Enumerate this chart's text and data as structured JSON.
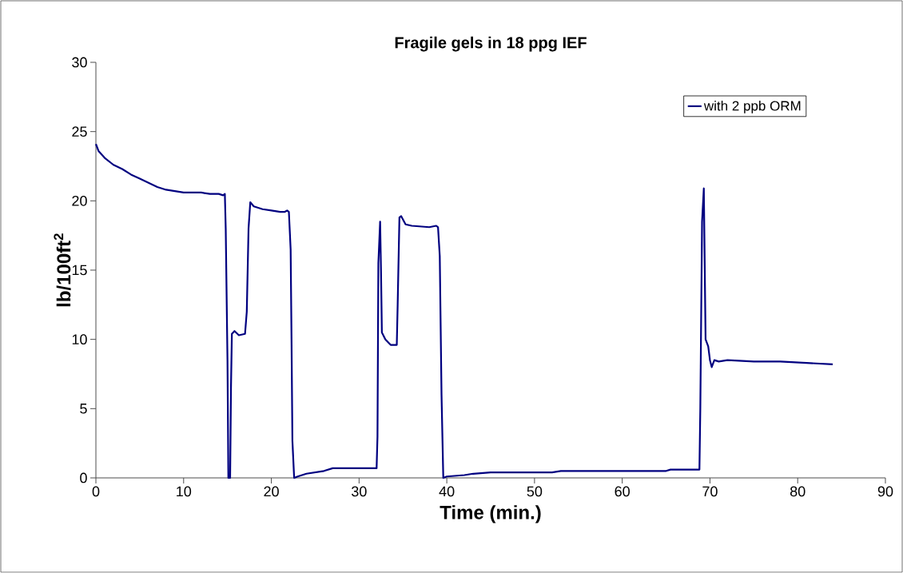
{
  "chart_data": {
    "type": "line",
    "title": "Fragile gels in 18 ppg IEF",
    "xlabel": "Time (min.)",
    "ylabel": "lb/100ft$^{2}$",
    "xlim": [
      0,
      90
    ],
    "xticks": [
      0,
      10,
      20,
      30,
      40,
      50,
      60,
      70,
      80,
      90
    ],
    "ylim": [
      0,
      30
    ],
    "yticks": [
      0,
      5,
      10,
      15,
      20,
      25,
      30
    ],
    "grid": false,
    "legend": "top right",
    "marker": "none",
    "line_style": "solid",
    "series": [
      {
        "name": "with 2 ppb ORM",
        "color": "#000080",
        "x": [
          0,
          0.3,
          1,
          2,
          3,
          4,
          5,
          6,
          7,
          8,
          9,
          10,
          12,
          13,
          14,
          14.5,
          14.7,
          14.8,
          15,
          15.1,
          15.3,
          15.4,
          15.5,
          15.8,
          16.3,
          17,
          17.2,
          17.4,
          17.6,
          18,
          19,
          20,
          21,
          21.5,
          21.8,
          22,
          22.2,
          22.3,
          22.4,
          22.6,
          23,
          24,
          25,
          26,
          27,
          30,
          32,
          32.1,
          32.2,
          32.4,
          32.5,
          32.6,
          33,
          33.6,
          34.3,
          34.4,
          34.6,
          34.8,
          35.3,
          36,
          38,
          38.8,
          39,
          39.2,
          39.4,
          39.6,
          40,
          42,
          43,
          45,
          52,
          53,
          65,
          65.5,
          68.8,
          68.9,
          69.1,
          69.3,
          69.5,
          69.8,
          70,
          70.2,
          70.5,
          71,
          72,
          75,
          78,
          81,
          84
        ],
        "values": [
          24.1,
          23.6,
          23.1,
          22.6,
          22.3,
          21.9,
          21.6,
          21.3,
          21.0,
          20.8,
          20.7,
          20.6,
          20.6,
          20.5,
          20.5,
          20.4,
          20.5,
          18,
          8.5,
          0,
          0,
          6.5,
          10.4,
          10.6,
          10.3,
          10.4,
          12,
          18,
          19.9,
          19.6,
          19.4,
          19.3,
          19.2,
          19.2,
          19.3,
          19.2,
          16.5,
          10,
          2.7,
          0,
          0.1,
          0.3,
          0.4,
          0.5,
          0.7,
          0.7,
          0.7,
          3,
          15.5,
          18.5,
          15,
          10.5,
          10,
          9.6,
          9.6,
          12.5,
          18.8,
          18.9,
          18.3,
          18.2,
          18.1,
          18.2,
          18.1,
          16,
          6,
          0,
          0.1,
          0.2,
          0.3,
          0.4,
          0.4,
          0.5,
          0.5,
          0.6,
          0.6,
          5,
          18.5,
          20.9,
          10,
          9.5,
          8.5,
          8,
          8.5,
          8.4,
          8.5,
          8.4,
          8.4,
          8.3,
          8.2
        ]
      }
    ]
  }
}
